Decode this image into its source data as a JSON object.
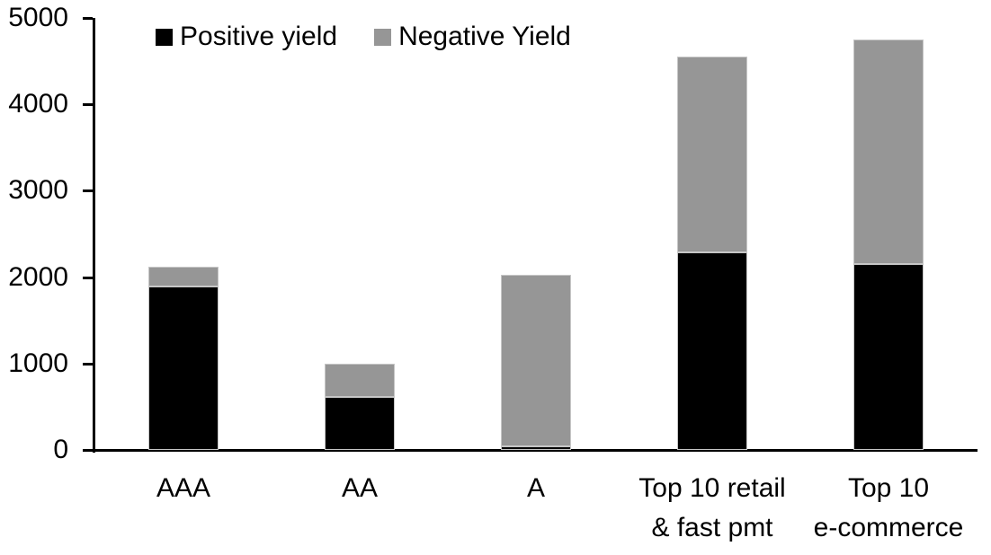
{
  "chart_data": {
    "type": "bar",
    "stacked": true,
    "title": "",
    "categories": [
      "AAA",
      "AA",
      "A",
      "Top 10 retail\n& fast pmt",
      "Top 10\ne-commerce"
    ],
    "series": [
      {
        "name": "Positive yield",
        "color": "#000000",
        "values": [
          1890,
          615,
          40,
          2290,
          2150
        ]
      },
      {
        "name": "Negative Yield",
        "color": "#969696",
        "values": [
          230,
          385,
          1990,
          2260,
          2600
        ]
      }
    ],
    "totals": [
      2120,
      1000,
      2030,
      4550,
      4750
    ],
    "ylim": [
      0,
      5000
    ],
    "ytick_step": 1000,
    "ytick_labels": [
      "0",
      "1000",
      "2000",
      "3000",
      "4000",
      "5000"
    ],
    "xlabel": "",
    "ylabel": "",
    "grid": false,
    "legend_position": "top",
    "axis_color": "#000000",
    "background_color": "#ffffff"
  }
}
